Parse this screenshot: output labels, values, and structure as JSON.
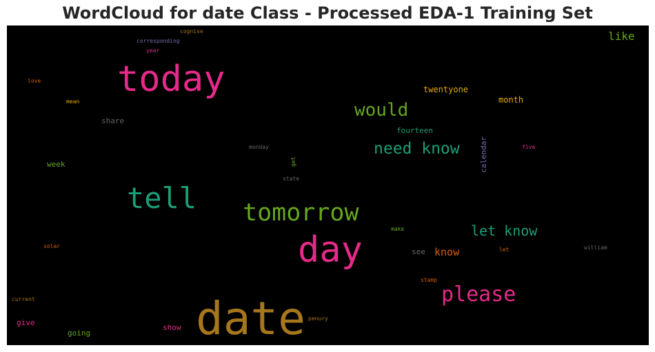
{
  "chart_data": {
    "type": "wordcloud",
    "title": "WordCloud for date Class - Processed EDA-1 Training Set",
    "background": "#000000",
    "words": [
      {
        "text": "date",
        "color": "#a6761d"
      },
      {
        "text": "today",
        "color": "#e7298a"
      },
      {
        "text": "day",
        "color": "#e7298a"
      },
      {
        "text": "tell",
        "color": "#1b9e77"
      },
      {
        "text": "tomorrow",
        "color": "#66a61e"
      },
      {
        "text": "please",
        "color": "#e7298a"
      },
      {
        "text": "would",
        "color": "#66a61e"
      },
      {
        "text": "need know",
        "color": "#1b9e77"
      },
      {
        "text": "let know",
        "color": "#1b9e77"
      },
      {
        "text": "like",
        "color": "#66a61e"
      },
      {
        "text": "know",
        "color": "#d95f02"
      },
      {
        "text": "twentyone",
        "color": "#e6ab02"
      },
      {
        "text": "month",
        "color": "#e6ab02"
      },
      {
        "text": "calendar",
        "color": "#7570b3"
      },
      {
        "text": "fourteen",
        "color": "#1b9e77"
      },
      {
        "text": "share",
        "color": "#666666"
      },
      {
        "text": "week",
        "color": "#66a61e"
      },
      {
        "text": "going",
        "color": "#66a61e"
      },
      {
        "text": "show",
        "color": "#e7298a"
      },
      {
        "text": "give",
        "color": "#e7298a"
      },
      {
        "text": "see",
        "color": "#666666"
      },
      {
        "text": "mean",
        "color": "#e6ab02"
      },
      {
        "text": "love",
        "color": "#d95f02"
      },
      {
        "text": "year",
        "color": "#e7298a"
      },
      {
        "text": "corresponding",
        "color": "#7570b3"
      },
      {
        "text": "cognise",
        "color": "#a6761d"
      },
      {
        "text": "monday",
        "color": "#666666"
      },
      {
        "text": "get",
        "color": "#66a61e"
      },
      {
        "text": "five",
        "color": "#e7298a"
      },
      {
        "text": "state",
        "color": "#666666"
      },
      {
        "text": "make",
        "color": "#66a61e"
      },
      {
        "text": "let",
        "color": "#d95f02"
      },
      {
        "text": "william",
        "color": "#666666"
      },
      {
        "text": "solar",
        "color": "#d95f02"
      },
      {
        "text": "stamp",
        "color": "#d95f02"
      },
      {
        "text": "current",
        "color": "#a6761d"
      },
      {
        "text": "penury",
        "color": "#a6761d"
      }
    ]
  }
}
